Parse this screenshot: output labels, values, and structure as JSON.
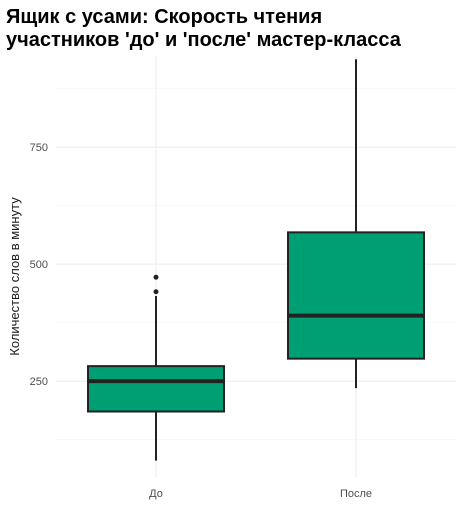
{
  "chart_data": {
    "type": "boxplot",
    "title_lines": [
      "Ящик с усами: Скорость чтения",
      "участников 'до' и 'после' мастер-класса"
    ],
    "xlabel": "",
    "ylabel": "Количество слов в минуту",
    "categories": [
      "До",
      "После"
    ],
    "ylim": [
      45,
      945
    ],
    "yticks": [
      250,
      500,
      750
    ],
    "grid": true,
    "box_color": "#009E73",
    "line_color": "#222222",
    "boxes": [
      {
        "category": "До",
        "whisker_low": 80,
        "q1": 185,
        "median": 250,
        "q3": 282,
        "whisker_high": 432,
        "outliers": [
          441,
          472
        ]
      },
      {
        "category": "После",
        "whisker_low": 235,
        "q1": 298,
        "median": 390,
        "q3": 568,
        "whisker_high": 938,
        "outliers": []
      }
    ]
  }
}
